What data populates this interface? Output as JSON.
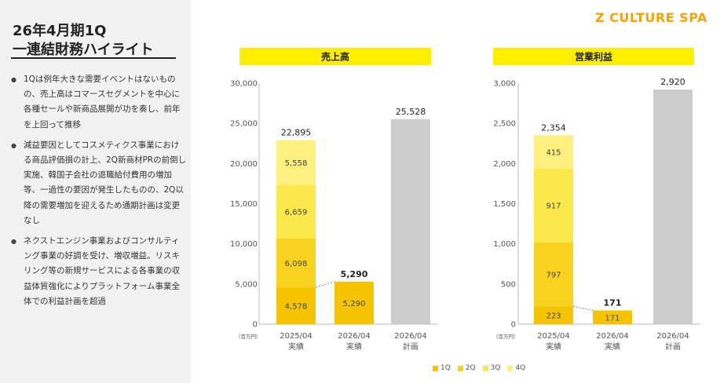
{
  "header": {
    "title_line1": "26年4月期1Q",
    "title_line2": "一連結財務ハイライト",
    "brand": "Z CULTURE SPA"
  },
  "bullets": [
    "1Qは例年大きな需要イベントはないものの、売上高はコマースセグメントを中心に各種セールや新商品展開が功を奏し、前年を上回って推移",
    "減益要因としてコスメティクス事業における商品評価損の計上、2Q新商材PRの前倒し実施、韓国子会社の退職給付費用の増加等、一過性の要因が発生したものの、2Q以降の需要増加を迎えるため通期計画は変更なし",
    "ネクストエンジン事業およびコンサルティング事業の好調を受け、増収増益。リスキリング等の新規サービスによる各事業の収益体質強化によりプラットフォーム事業全体での利益計画を超過"
  ],
  "colors": {
    "q1": "#f5c400",
    "q2": "#f9d21f",
    "q3": "#fbe84a",
    "q4": "#fdf07e",
    "plan": "#cccccc",
    "title_band": "#ffee00",
    "brand": "#f5a300"
  },
  "legend": [
    "1Q",
    "2Q",
    "3Q",
    "4Q"
  ],
  "chart_data": [
    {
      "type": "bar",
      "title": "売上高",
      "unit_label": "（百万円）",
      "ylim": [
        0,
        30000
      ],
      "yticks": [
        0,
        5000,
        10000,
        15000,
        20000,
        25000,
        30000
      ],
      "ytick_labels": [
        "0",
        "5,000",
        "10,000",
        "15,000",
        "20,000",
        "25,000",
        "30,000"
      ],
      "categories": [
        {
          "line1": "2025/04",
          "line2": "実績"
        },
        {
          "line1": "2026/04",
          "line2": "実績"
        },
        {
          "line1": "2026/04",
          "line2": "計画"
        }
      ],
      "series": [
        {
          "name": "1Q",
          "values": [
            4578,
            5290,
            null
          ],
          "labels": [
            "4,578",
            "5,290",
            ""
          ]
        },
        {
          "name": "2Q",
          "values": [
            6098,
            null,
            null
          ],
          "labels": [
            "6,098",
            "",
            ""
          ]
        },
        {
          "name": "3Q",
          "values": [
            6659,
            null,
            null
          ],
          "labels": [
            "6,659",
            "",
            ""
          ]
        },
        {
          "name": "4Q",
          "values": [
            5558,
            null,
            null
          ],
          "labels": [
            "5,558",
            "",
            ""
          ]
        }
      ],
      "plan_value": 25528,
      "totals": [
        "22,895",
        "5,290",
        "25,528"
      ],
      "total_bold": [
        false,
        true,
        false
      ]
    },
    {
      "type": "bar",
      "title": "営業利益",
      "unit_label": "（百万円）",
      "ylim": [
        0,
        3000
      ],
      "yticks": [
        0,
        500,
        1000,
        1500,
        2000,
        2500,
        3000
      ],
      "ytick_labels": [
        "0",
        "500",
        "1,000",
        "1,500",
        "2,000",
        "2,500",
        "3,000"
      ],
      "categories": [
        {
          "line1": "2025/04",
          "line2": "実績"
        },
        {
          "line1": "2026/04",
          "line2": "実績"
        },
        {
          "line1": "2026/04",
          "line2": "計画"
        }
      ],
      "series": [
        {
          "name": "1Q",
          "values": [
            223,
            171,
            null
          ],
          "labels": [
            "223",
            "171",
            ""
          ]
        },
        {
          "name": "2Q",
          "values": [
            797,
            null,
            null
          ],
          "labels": [
            "797",
            "",
            ""
          ]
        },
        {
          "name": "3Q",
          "values": [
            917,
            null,
            null
          ],
          "labels": [
            "917",
            "",
            ""
          ]
        },
        {
          "name": "4Q",
          "values": [
            415,
            null,
            null
          ],
          "labels": [
            "415",
            "",
            ""
          ]
        }
      ],
      "plan_value": 2920,
      "totals": [
        "2,354",
        "171",
        "2,920"
      ],
      "total_bold": [
        false,
        true,
        false
      ]
    }
  ]
}
